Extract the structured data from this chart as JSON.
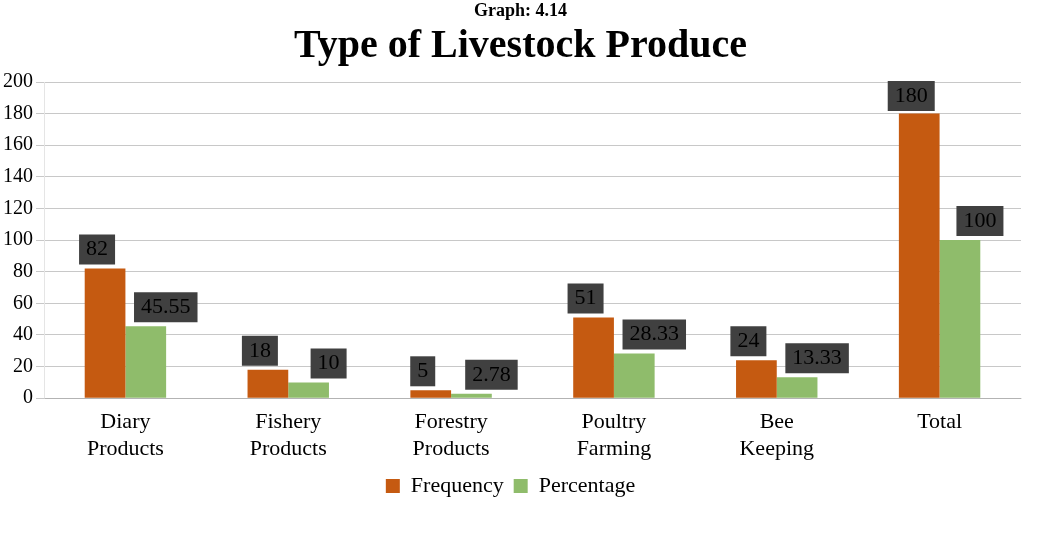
{
  "chart_data": {
    "type": "bar",
    "title": "Type of Livestock Produce",
    "subtitle": "Graph: 4.14",
    "categories": [
      "Diary Products",
      "Fishery Products",
      "Forestry Products",
      "Poultry Farming",
      "Bee Keeping",
      "Total"
    ],
    "series": [
      {
        "name": "Frequency",
        "color": "#c55a11",
        "values": [
          82,
          18,
          5,
          51,
          24,
          180
        ]
      },
      {
        "name": "Percentage",
        "color": "#8fbc6b",
        "values": [
          45.55,
          10,
          2.78,
          28.33,
          13.33,
          100
        ]
      }
    ],
    "ylim": [
      0,
      200
    ],
    "yticks": [
      0,
      20,
      40,
      60,
      80,
      100,
      120,
      140,
      160,
      180,
      200
    ],
    "grid": "y",
    "legend": "bottom",
    "data_labels": true
  }
}
